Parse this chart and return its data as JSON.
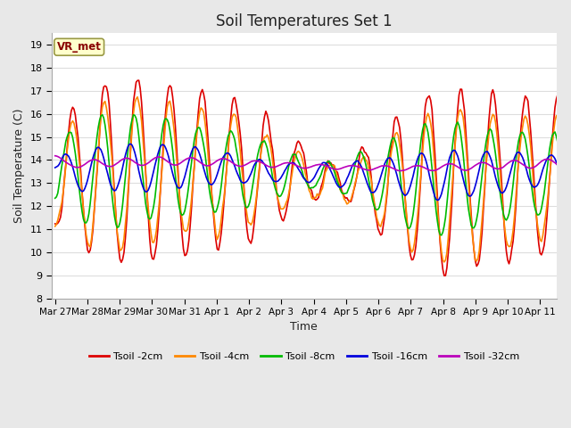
{
  "title": "Soil Temperatures Set 1",
  "xlabel": "Time",
  "ylabel": "Soil Temperature (C)",
  "ylim": [
    8.0,
    19.5
  ],
  "yticks": [
    8.0,
    9.0,
    10.0,
    11.0,
    12.0,
    13.0,
    14.0,
    15.0,
    16.0,
    17.0,
    18.0,
    19.0
  ],
  "fig_bg_color": "#e8e8e8",
  "plot_bg_color": "#ffffff",
  "grid_color": "#dddddd",
  "annotation_text": "VR_met",
  "annotation_bg": "#ffffcc",
  "annotation_border": "#999944",
  "line_colors": {
    "2cm": "#dd0000",
    "4cm": "#ff8800",
    "8cm": "#00bb00",
    "16cm": "#0000dd",
    "32cm": "#bb00bb"
  },
  "legend_labels": [
    "Tsoil -2cm",
    "Tsoil -4cm",
    "Tsoil -8cm",
    "Tsoil -16cm",
    "Tsoil -32cm"
  ],
  "xtick_labels": [
    "Mar 27",
    "Mar 28",
    "Mar 29",
    "Mar 30",
    "Mar 31",
    "Apr 1",
    "Apr 2",
    "Apr 3",
    "Apr 4",
    "Apr 5",
    "Apr 6",
    "Apr 7",
    "Apr 8",
    "Apr 9",
    "Apr 10",
    "Apr 11"
  ],
  "n_points": 384,
  "title_fontsize": 12,
  "axis_fontsize": 9,
  "tick_fontsize": 8
}
